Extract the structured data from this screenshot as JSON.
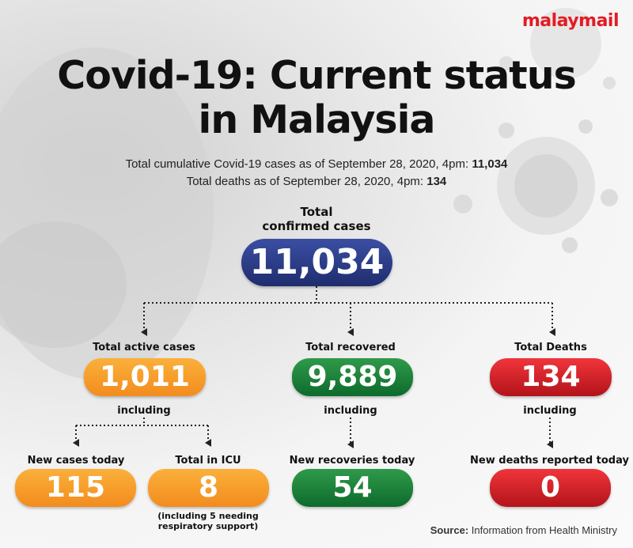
{
  "brand": {
    "logo_malay": "malay",
    "logo_mail": "mail"
  },
  "header": {
    "title_line1": "Covid-19: Current status",
    "title_line2": "in Malaysia",
    "cumulative_label": "Total cumulative Covid-19 cases as of September 28, 2020, 4pm: ",
    "cumulative_value": "11,034",
    "deaths_label": "Total deaths as of September 28, 2020, 4pm: ",
    "deaths_value": "134"
  },
  "total": {
    "label_line1": "Total",
    "label_line2": "confirmed cases",
    "value": "11,034"
  },
  "active": {
    "label": "Total active cases",
    "value": "1,011",
    "including": "including"
  },
  "recovered": {
    "label": "Total recovered",
    "value": "9,889",
    "including": "including"
  },
  "deaths": {
    "label": "Total Deaths",
    "value": "134",
    "including": "including"
  },
  "new_cases": {
    "label": "New cases today",
    "value": "115"
  },
  "icu": {
    "label": "Total in ICU",
    "value": "8",
    "note_line1": "(including 5 needing",
    "note_line2": "respiratory support)"
  },
  "new_recoveries": {
    "label": "New recoveries today",
    "value": "54"
  },
  "new_deaths": {
    "label": "New deaths reported today",
    "value": "0"
  },
  "source": {
    "label": "Source:",
    "text": " Information from Health Ministry"
  },
  "colors": {
    "blue": "#1f2d6e",
    "orange": "#f28c1e",
    "green": "#0d6b2c",
    "red": "#b3131a",
    "brand": "#e31b23"
  }
}
